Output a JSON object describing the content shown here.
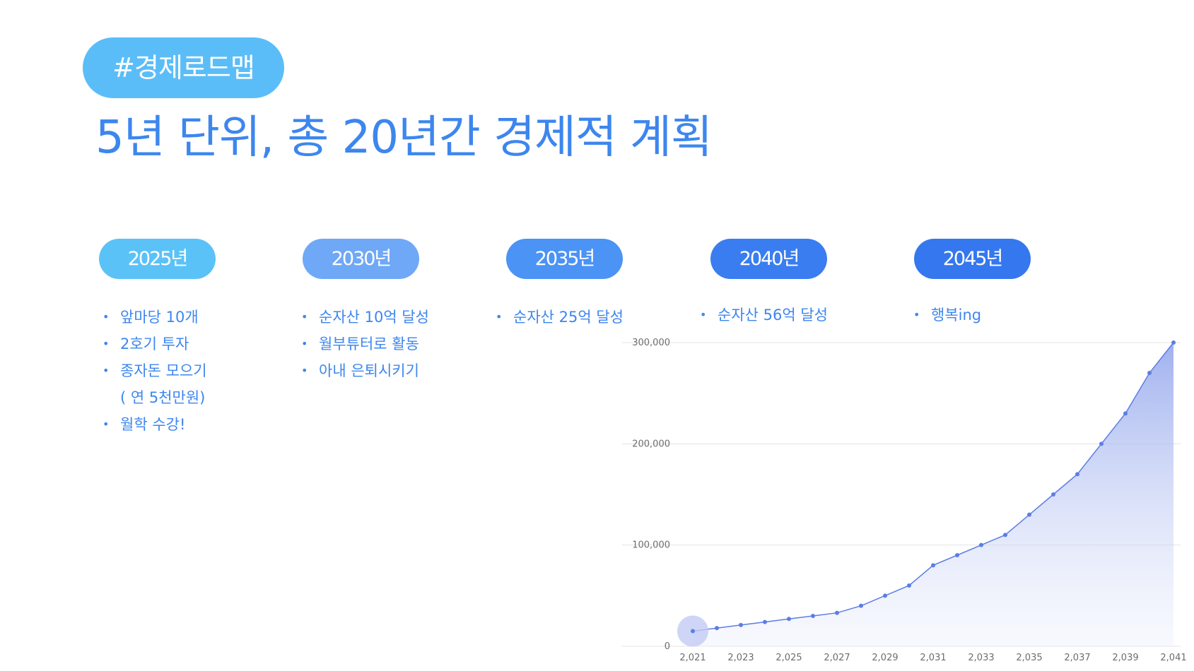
{
  "header": {
    "tag": "#경제로드맵",
    "title": "5년 단위, 총 20년간 경제적 계획"
  },
  "milestones": [
    {
      "year": "2025년",
      "color": "#5bc2f7",
      "items": [
        "앞마당 10개",
        "2호기 투자",
        "종자돈 모으기",
        "( 연 5천만원)",
        "월학 수강!"
      ]
    },
    {
      "year": "2030년",
      "color": "#6fa8f6",
      "items": [
        "순자산 10억 달성",
        "월부튜터로 활동",
        "아내 은퇴시키기"
      ]
    },
    {
      "year": "2035년",
      "color": "#4b93f5",
      "items": [
        "순자산 25억 달성"
      ]
    },
    {
      "year": "2040년",
      "color": "#3a7df0",
      "items": [
        "순자산 56억 달성"
      ]
    },
    {
      "year": "2045년",
      "color": "#3577ee",
      "items": [
        "행복ing"
      ]
    }
  ],
  "chart_data": {
    "type": "area",
    "x": [
      2021,
      2022,
      2023,
      2024,
      2025,
      2026,
      2027,
      2028,
      2029,
      2030,
      2031,
      2032,
      2033,
      2034,
      2035,
      2036,
      2037,
      2038,
      2039,
      2040,
      2041
    ],
    "series": [
      {
        "values": [
          15000,
          18000,
          21000,
          24000,
          27000,
          30000,
          33000,
          40000,
          50000,
          60000,
          80000,
          90000,
          100000,
          110000,
          130000,
          150000,
          170000,
          200000,
          230000,
          270000,
          300000
        ]
      }
    ],
    "x_ticks": [
      "2,021",
      "2,023",
      "2,025",
      "2,027",
      "2,029",
      "2,031",
      "2,033",
      "2,035",
      "2,037",
      "2,039",
      "2,041"
    ],
    "y_ticks": [
      "0",
      "100,000",
      "200,000",
      "300,000"
    ],
    "ylim": [
      0,
      300000
    ],
    "xlim": [
      2021,
      2041
    ],
    "grid": true,
    "color": "#5b7de6"
  }
}
